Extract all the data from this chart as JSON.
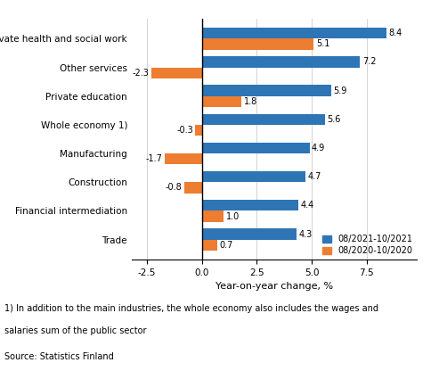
{
  "categories": [
    "Trade",
    "Financial intermediation",
    "Construction",
    "Manufacturing",
    "Whole economy 1)",
    "Private education",
    "Other services",
    "Private health and social work"
  ],
  "values_2021": [
    4.3,
    4.4,
    4.7,
    4.9,
    5.6,
    5.9,
    7.2,
    8.4
  ],
  "values_2020": [
    0.7,
    1.0,
    -0.8,
    -1.7,
    -0.3,
    1.8,
    -2.3,
    5.1
  ],
  "color_2021": "#2e75b6",
  "color_2020": "#ed7d31",
  "xlabel": "Year-on-year change, %",
  "legend_2021": "08/2021-10/2021",
  "legend_2020": "08/2020-10/2020",
  "xlim": [
    -3.2,
    9.8
  ],
  "xticks": [
    -2.5,
    0.0,
    2.5,
    5.0,
    7.5
  ],
  "xtick_labels": [
    "-2.5",
    "0.0",
    "2.5",
    "5.0",
    "7.5"
  ],
  "footnote1": "1) In addition to the main industries, the whole economy also includes the wages and",
  "footnote2": "salaries sum of the public sector",
  "source": "Source: Statistics Finland",
  "bar_height": 0.38
}
